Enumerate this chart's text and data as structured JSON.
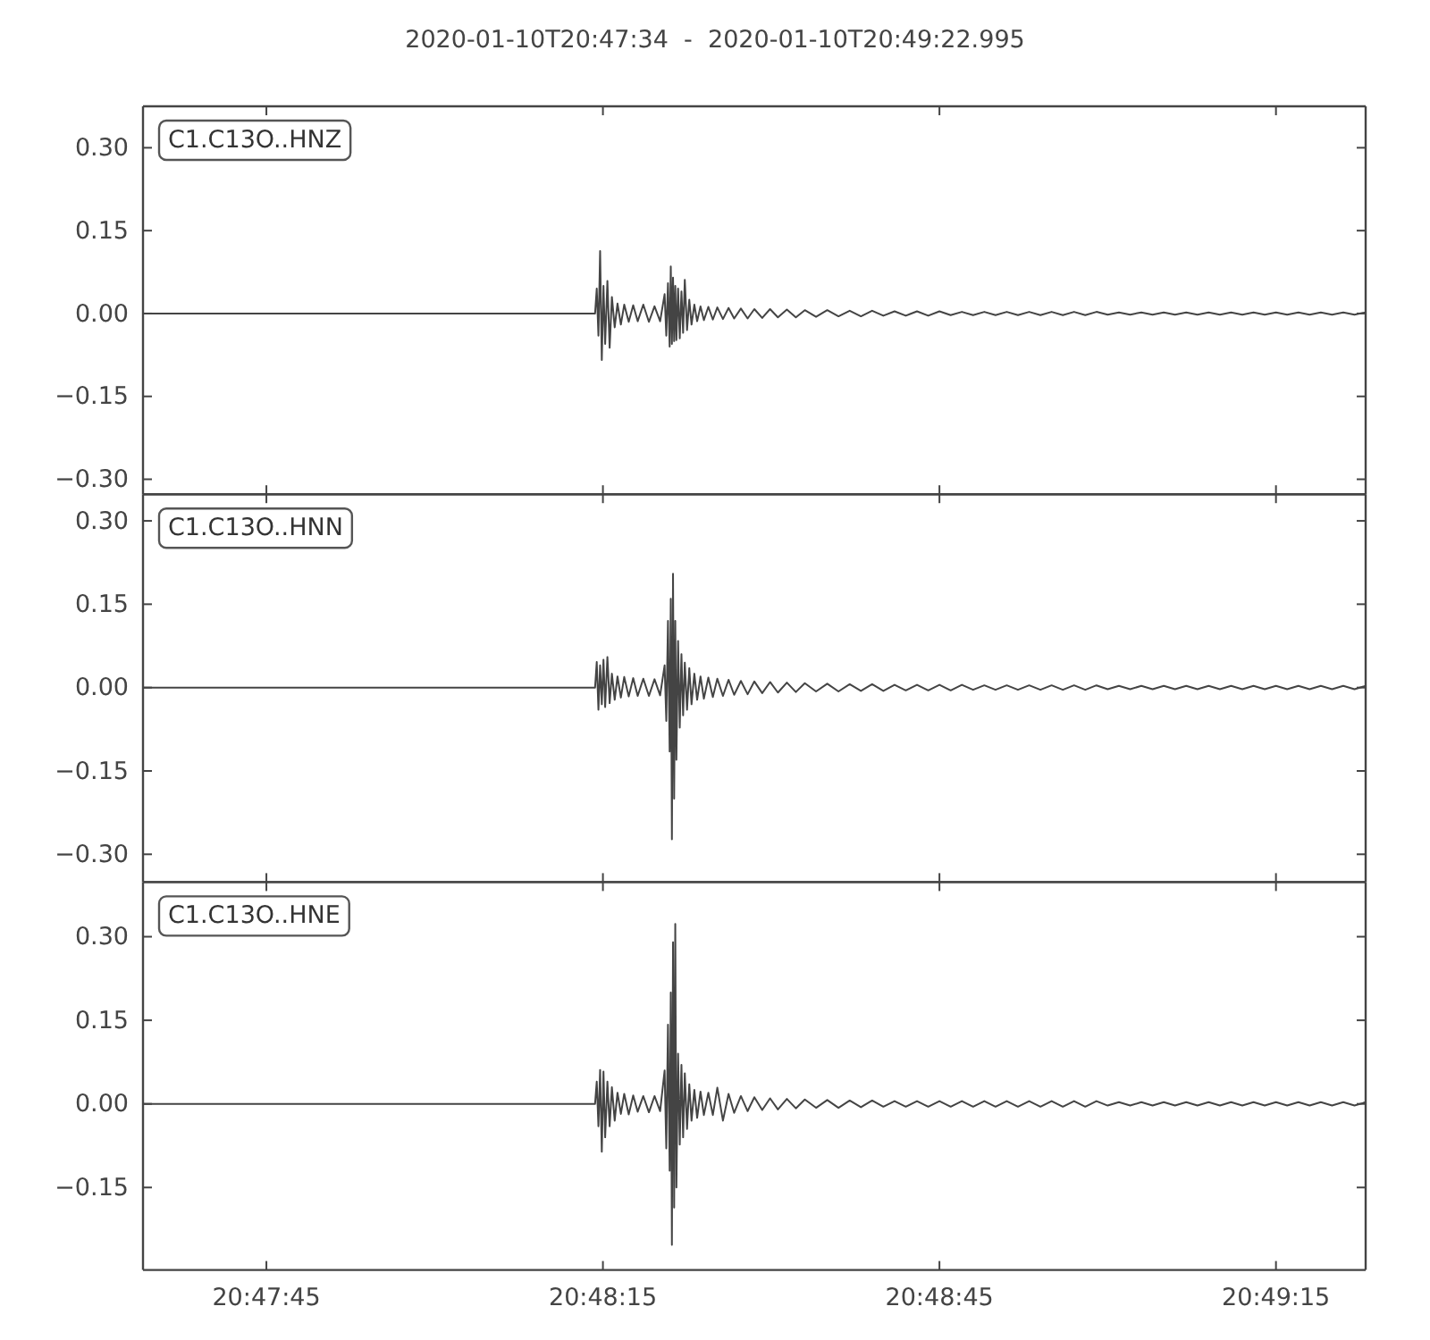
{
  "chart_data": [
    {
      "type": "line",
      "title": "2020-01-10T20:47:34  -  2020-01-10T20:49:22.995",
      "color": "#444444",
      "tick_labels": "y",
      "xlim": [
        "2020-01-10T20:47:34",
        "2020-01-10T20:49:22.995"
      ],
      "xticks": [
        {
          "value": "2020-01-10T20:47:45",
          "label": null
        },
        {
          "value": "2020-01-10T20:48:15",
          "label": null
        },
        {
          "value": "2020-01-10T20:48:45",
          "label": null
        },
        {
          "value": "2020-01-10T20:49:15",
          "label": null
        }
      ],
      "ylim": [
        -0.327,
        0.375
      ],
      "yticks": [
        {
          "value": -0.3,
          "label": "−0.30"
        },
        {
          "value": -0.15,
          "label": "−0.15"
        },
        {
          "value": 0,
          "label": "0.00"
        },
        {
          "value": 0.15,
          "label": "0.15"
        },
        {
          "value": 0.3,
          "label": "0.30"
        }
      ],
      "annotations": [
        "C1.C13O..HNZ"
      ],
      "x": [
        "2020-01-10T20:47:34",
        "2020-01-10T20:48:14.300",
        "2020-01-10T20:48:14.450",
        "2020-01-10T20:48:14.600",
        "2020-01-10T20:48:14.750",
        "2020-01-10T20:48:14.900",
        "2020-01-10T20:48:15.050",
        "2020-01-10T20:48:15.200",
        "2020-01-10T20:48:15.400",
        "2020-01-10T20:48:15.600",
        "2020-01-10T20:48:15.800",
        "2020-01-10T20:48:16.050",
        "2020-01-10T20:48:16.300",
        "2020-01-10T20:48:16.600",
        "2020-01-10T20:48:16.900",
        "2020-01-10T20:48:17.300",
        "2020-01-10T20:48:17.700",
        "2020-01-10T20:48:18.100",
        "2020-01-10T20:48:18.600",
        "2020-01-10T20:48:19.100",
        "2020-01-10T20:48:19.600",
        "2020-01-10T20:48:20.100",
        "2020-01-10T20:48:20.500",
        "2020-01-10T20:48:20.650",
        "2020-01-10T20:48:20.800",
        "2020-01-10T20:48:20.950",
        "2020-01-10T20:48:21.050",
        "2020-01-10T20:48:21.150",
        "2020-01-10T20:48:21.250",
        "2020-01-10T20:48:21.350",
        "2020-01-10T20:48:21.450",
        "2020-01-10T20:48:21.550",
        "2020-01-10T20:48:21.700",
        "2020-01-10T20:48:21.850",
        "2020-01-10T20:48:22",
        "2020-01-10T20:48:22.150",
        "2020-01-10T20:48:22.300",
        "2020-01-10T20:48:22.500",
        "2020-01-10T20:48:22.700",
        "2020-01-10T20:48:22.900",
        "2020-01-10T20:48:23.150",
        "2020-01-10T20:48:23.400",
        "2020-01-10T20:48:23.700",
        "2020-01-10T20:48:24",
        "2020-01-10T20:48:24.400",
        "2020-01-10T20:48:24.800",
        "2020-01-10T20:48:25.200",
        "2020-01-10T20:48:25.700",
        "2020-01-10T20:48:26.200",
        "2020-01-10T20:48:26.700",
        "2020-01-10T20:48:27.300",
        "2020-01-10T20:48:27.900",
        "2020-01-10T20:48:28.500",
        "2020-01-10T20:48:29.200",
        "2020-01-10T20:48:29.900",
        "2020-01-10T20:48:30.600",
        "2020-01-10T20:48:31.400",
        "2020-01-10T20:48:32.200",
        "2020-01-10T20:48:33",
        "2020-01-10T20:48:34",
        "2020-01-10T20:48:35",
        "2020-01-10T20:48:36",
        "2020-01-10T20:48:37",
        "2020-01-10T20:48:38",
        "2020-01-10T20:48:39",
        "2020-01-10T20:48:40",
        "2020-01-10T20:48:41",
        "2020-01-10T20:48:42",
        "2020-01-10T20:48:43",
        "2020-01-10T20:48:44",
        "2020-01-10T20:48:45",
        "2020-01-10T20:48:46",
        "2020-01-10T20:48:47",
        "2020-01-10T20:48:48",
        "2020-01-10T20:48:49",
        "2020-01-10T20:48:50",
        "2020-01-10T20:48:51",
        "2020-01-10T20:48:52",
        "2020-01-10T20:48:53",
        "2020-01-10T20:48:54",
        "2020-01-10T20:48:55",
        "2020-01-10T20:48:56",
        "2020-01-10T20:48:57",
        "2020-01-10T20:48:58",
        "2020-01-10T20:48:59",
        "2020-01-10T20:49:00",
        "2020-01-10T20:49:01",
        "2020-01-10T20:49:02",
        "2020-01-10T20:49:03",
        "2020-01-10T20:49:04",
        "2020-01-10T20:49:05",
        "2020-01-10T20:49:06",
        "2020-01-10T20:49:07",
        "2020-01-10T20:49:08",
        "2020-01-10T20:49:09",
        "2020-01-10T20:49:10",
        "2020-01-10T20:49:11",
        "2020-01-10T20:49:12",
        "2020-01-10T20:49:13",
        "2020-01-10T20:49:14",
        "2020-01-10T20:49:15",
        "2020-01-10T20:49:16",
        "2020-01-10T20:49:17",
        "2020-01-10T20:49:18",
        "2020-01-10T20:49:19",
        "2020-01-10T20:49:20",
        "2020-01-10T20:49:21",
        "2020-01-10T20:49:22",
        "2020-01-10T20:49:22.995"
      ],
      "values": [
        0,
        0,
        0.045,
        -0.04,
        0.113,
        -0.084,
        0.05,
        -0.055,
        0.059,
        -0.062,
        0.03,
        -0.025,
        0.018,
        -0.02,
        0.016,
        -0.015,
        0.015,
        -0.014,
        0.016,
        -0.015,
        0.013,
        -0.014,
        0.035,
        -0.04,
        0.055,
        -0.06,
        0.085,
        -0.055,
        0.065,
        -0.05,
        0.05,
        -0.048,
        0.045,
        -0.045,
        0.04,
        -0.035,
        0.061,
        -0.03,
        0.025,
        -0.02,
        0.016,
        -0.014,
        0.013,
        -0.012,
        0.012,
        -0.011,
        0.011,
        -0.01,
        0.01,
        -0.009,
        0.009,
        -0.009,
        0.008,
        -0.008,
        0.008,
        -0.007,
        0.007,
        -0.007,
        0.006,
        -0.006,
        0.006,
        -0.005,
        0.005,
        -0.005,
        0.005,
        -0.004,
        0.004,
        -0.004,
        0.004,
        -0.004,
        0.004,
        -0.003,
        0.003,
        -0.003,
        0.003,
        -0.003,
        0.003,
        -0.003,
        0.003,
        -0.003,
        0.003,
        -0.003,
        0.003,
        -0.003,
        0.003,
        -0.002,
        0.002,
        -0.002,
        0.002,
        -0.002,
        0.002,
        -0.002,
        0.002,
        -0.002,
        0.002,
        -0.002,
        0.002,
        -0.002,
        0.002,
        -0.002,
        0.002,
        -0.002,
        0.002,
        -0.002,
        0.002,
        -0.002,
        0.002,
        -0.002,
        0.002
      ]
    },
    {
      "type": "line",
      "color": "#444444",
      "tick_labels": "y",
      "xlim": [
        "2020-01-10T20:47:34",
        "2020-01-10T20:49:22.995"
      ],
      "xticks": [
        {
          "value": "2020-01-10T20:47:45",
          "label": null
        },
        {
          "value": "2020-01-10T20:48:15",
          "label": null
        },
        {
          "value": "2020-01-10T20:48:45",
          "label": null
        },
        {
          "value": "2020-01-10T20:49:15",
          "label": null
        }
      ],
      "ylim": [
        -0.35,
        0.348
      ],
      "yticks": [
        {
          "value": -0.3,
          "label": "−0.30"
        },
        {
          "value": -0.15,
          "label": "−0.15"
        },
        {
          "value": 0,
          "label": "0.00"
        },
        {
          "value": 0.15,
          "label": "0.15"
        },
        {
          "value": 0.3,
          "label": "0.30"
        }
      ],
      "annotations": [
        "C1.C13O..HNN"
      ],
      "x": [
        "2020-01-10T20:47:34",
        "2020-01-10T20:48:14.300",
        "2020-01-10T20:48:14.450",
        "2020-01-10T20:48:14.600",
        "2020-01-10T20:48:14.750",
        "2020-01-10T20:48:14.900",
        "2020-01-10T20:48:15.050",
        "2020-01-10T20:48:15.200",
        "2020-01-10T20:48:15.400",
        "2020-01-10T20:48:15.600",
        "2020-01-10T20:48:15.800",
        "2020-01-10T20:48:16.050",
        "2020-01-10T20:48:16.300",
        "2020-01-10T20:48:16.600",
        "2020-01-10T20:48:16.900",
        "2020-01-10T20:48:17.300",
        "2020-01-10T20:48:17.700",
        "2020-01-10T20:48:18.100",
        "2020-01-10T20:48:18.600",
        "2020-01-10T20:48:19.100",
        "2020-01-10T20:48:19.600",
        "2020-01-10T20:48:20.100",
        "2020-01-10T20:48:20.500",
        "2020-01-10T20:48:20.650",
        "2020-01-10T20:48:20.800",
        "2020-01-10T20:48:20.950",
        "2020-01-10T20:48:21.050",
        "2020-01-10T20:48:21.150",
        "2020-01-10T20:48:21.250",
        "2020-01-10T20:48:21.350",
        "2020-01-10T20:48:21.450",
        "2020-01-10T20:48:21.550",
        "2020-01-10T20:48:21.700",
        "2020-01-10T20:48:21.850",
        "2020-01-10T20:48:22",
        "2020-01-10T20:48:22.150",
        "2020-01-10T20:48:22.300",
        "2020-01-10T20:48:22.500",
        "2020-01-10T20:48:22.700",
        "2020-01-10T20:48:22.900",
        "2020-01-10T20:48:23.150",
        "2020-01-10T20:48:23.400",
        "2020-01-10T20:48:23.700",
        "2020-01-10T20:48:24",
        "2020-01-10T20:48:24.400",
        "2020-01-10T20:48:24.800",
        "2020-01-10T20:48:25.200",
        "2020-01-10T20:48:25.700",
        "2020-01-10T20:48:26.200",
        "2020-01-10T20:48:26.700",
        "2020-01-10T20:48:27.300",
        "2020-01-10T20:48:27.900",
        "2020-01-10T20:48:28.500",
        "2020-01-10T20:48:29.200",
        "2020-01-10T20:48:29.900",
        "2020-01-10T20:48:30.600",
        "2020-01-10T20:48:31.400",
        "2020-01-10T20:48:32.200",
        "2020-01-10T20:48:33",
        "2020-01-10T20:48:34",
        "2020-01-10T20:48:35",
        "2020-01-10T20:48:36",
        "2020-01-10T20:48:37",
        "2020-01-10T20:48:38",
        "2020-01-10T20:48:39",
        "2020-01-10T20:48:40",
        "2020-01-10T20:48:41",
        "2020-01-10T20:48:42",
        "2020-01-10T20:48:43",
        "2020-01-10T20:48:44",
        "2020-01-10T20:48:45",
        "2020-01-10T20:48:46",
        "2020-01-10T20:48:47",
        "2020-01-10T20:48:48",
        "2020-01-10T20:48:49",
        "2020-01-10T20:48:50",
        "2020-01-10T20:48:51",
        "2020-01-10T20:48:52",
        "2020-01-10T20:48:53",
        "2020-01-10T20:48:54",
        "2020-01-10T20:48:55",
        "2020-01-10T20:48:56",
        "2020-01-10T20:48:57",
        "2020-01-10T20:48:58",
        "2020-01-10T20:48:59",
        "2020-01-10T20:49:00",
        "2020-01-10T20:49:01",
        "2020-01-10T20:49:02",
        "2020-01-10T20:49:03",
        "2020-01-10T20:49:04",
        "2020-01-10T20:49:05",
        "2020-01-10T20:49:06",
        "2020-01-10T20:49:07",
        "2020-01-10T20:49:08",
        "2020-01-10T20:49:09",
        "2020-01-10T20:49:10",
        "2020-01-10T20:49:11",
        "2020-01-10T20:49:12",
        "2020-01-10T20:49:13",
        "2020-01-10T20:49:14",
        "2020-01-10T20:49:15",
        "2020-01-10T20:49:16",
        "2020-01-10T20:49:17",
        "2020-01-10T20:49:18",
        "2020-01-10T20:49:19",
        "2020-01-10T20:49:20",
        "2020-01-10T20:49:21",
        "2020-01-10T20:49:22",
        "2020-01-10T20:49:22.995"
      ],
      "values": [
        0,
        0,
        0.046,
        -0.04,
        0.04,
        -0.03,
        0.05,
        -0.035,
        0.055,
        -0.028,
        0.025,
        -0.022,
        0.02,
        -0.018,
        0.019,
        -0.016,
        0.017,
        -0.015,
        0.016,
        -0.015,
        0.015,
        -0.014,
        0.04,
        -0.06,
        0.12,
        -0.115,
        0.16,
        -0.273,
        0.205,
        -0.2,
        0.12,
        -0.13,
        0.084,
        -0.072,
        0.06,
        -0.05,
        0.045,
        -0.04,
        0.035,
        -0.03,
        0.025,
        -0.022,
        0.02,
        -0.02,
        0.018,
        -0.017,
        0.016,
        -0.015,
        0.014,
        -0.013,
        0.012,
        -0.012,
        0.011,
        -0.01,
        0.01,
        -0.009,
        0.009,
        -0.008,
        0.008,
        -0.007,
        0.007,
        -0.007,
        0.006,
        -0.006,
        0.006,
        -0.006,
        0.005,
        -0.005,
        0.005,
        -0.005,
        0.005,
        -0.005,
        0.005,
        -0.004,
        0.004,
        -0.004,
        0.004,
        -0.004,
        0.004,
        -0.004,
        0.004,
        -0.004,
        0.004,
        -0.004,
        0.004,
        -0.003,
        0.003,
        -0.003,
        0.003,
        -0.003,
        0.003,
        -0.003,
        0.003,
        -0.003,
        0.003,
        -0.003,
        0.003,
        -0.003,
        0.003,
        -0.003,
        0.003,
        -0.003,
        0.003,
        -0.003,
        0.003,
        -0.003,
        0.003,
        -0.003,
        0.003
      ]
    },
    {
      "type": "line",
      "color": "#444444",
      "xlim": [
        "2020-01-10T20:47:34",
        "2020-01-10T20:49:22.995"
      ],
      "xticks": [
        {
          "value": "2020-01-10T20:47:45",
          "label": "20:47:45"
        },
        {
          "value": "2020-01-10T20:48:15",
          "label": "20:48:15"
        },
        {
          "value": "2020-01-10T20:48:45",
          "label": "20:48:45"
        },
        {
          "value": "2020-01-10T20:49:15",
          "label": "20:49:15"
        }
      ],
      "ylim": [
        -0.298,
        0.398
      ],
      "yticks": [
        {
          "value": -0.15,
          "label": "−0.15"
        },
        {
          "value": 0,
          "label": "0.00"
        },
        {
          "value": 0.15,
          "label": "0.15"
        },
        {
          "value": 0.3,
          "label": "0.30"
        }
      ],
      "annotations": [
        "C1.C13O..HNE"
      ],
      "x": [
        "2020-01-10T20:47:34",
        "2020-01-10T20:48:14.300",
        "2020-01-10T20:48:14.450",
        "2020-01-10T20:48:14.600",
        "2020-01-10T20:48:14.750",
        "2020-01-10T20:48:14.900",
        "2020-01-10T20:48:15.050",
        "2020-01-10T20:48:15.200",
        "2020-01-10T20:48:15.400",
        "2020-01-10T20:48:15.600",
        "2020-01-10T20:48:15.800",
        "2020-01-10T20:48:16.050",
        "2020-01-10T20:48:16.300",
        "2020-01-10T20:48:16.600",
        "2020-01-10T20:48:16.900",
        "2020-01-10T20:48:17.300",
        "2020-01-10T20:48:17.700",
        "2020-01-10T20:48:18.100",
        "2020-01-10T20:48:18.600",
        "2020-01-10T20:48:19.100",
        "2020-01-10T20:48:19.600",
        "2020-01-10T20:48:20.100",
        "2020-01-10T20:48:20.500",
        "2020-01-10T20:48:20.650",
        "2020-01-10T20:48:20.800",
        "2020-01-10T20:48:20.950",
        "2020-01-10T20:48:21.050",
        "2020-01-10T20:48:21.150",
        "2020-01-10T20:48:21.250",
        "2020-01-10T20:48:21.350",
        "2020-01-10T20:48:21.450",
        "2020-01-10T20:48:21.550",
        "2020-01-10T20:48:21.700",
        "2020-01-10T20:48:21.850",
        "2020-01-10T20:48:22",
        "2020-01-10T20:48:22.150",
        "2020-01-10T20:48:22.300",
        "2020-01-10T20:48:22.500",
        "2020-01-10T20:48:22.700",
        "2020-01-10T20:48:22.900",
        "2020-01-10T20:48:23.150",
        "2020-01-10T20:48:23.400",
        "2020-01-10T20:48:23.700",
        "2020-01-10T20:48:24",
        "2020-01-10T20:48:24.400",
        "2020-01-10T20:48:24.800",
        "2020-01-10T20:48:25.200",
        "2020-01-10T20:48:25.700",
        "2020-01-10T20:48:26.200",
        "2020-01-10T20:48:26.700",
        "2020-01-10T20:48:27.300",
        "2020-01-10T20:48:27.900",
        "2020-01-10T20:48:28.500",
        "2020-01-10T20:48:29.200",
        "2020-01-10T20:48:29.900",
        "2020-01-10T20:48:30.600",
        "2020-01-10T20:48:31.400",
        "2020-01-10T20:48:32.200",
        "2020-01-10T20:48:33",
        "2020-01-10T20:48:34",
        "2020-01-10T20:48:35",
        "2020-01-10T20:48:36",
        "2020-01-10T20:48:37",
        "2020-01-10T20:48:38",
        "2020-01-10T20:48:39",
        "2020-01-10T20:48:40",
        "2020-01-10T20:48:41",
        "2020-01-10T20:48:42",
        "2020-01-10T20:48:43",
        "2020-01-10T20:48:44",
        "2020-01-10T20:48:45",
        "2020-01-10T20:48:46",
        "2020-01-10T20:48:47",
        "2020-01-10T20:48:48",
        "2020-01-10T20:48:49",
        "2020-01-10T20:48:50",
        "2020-01-10T20:48:51",
        "2020-01-10T20:48:52",
        "2020-01-10T20:48:53",
        "2020-01-10T20:48:54",
        "2020-01-10T20:48:55",
        "2020-01-10T20:48:56",
        "2020-01-10T20:48:57",
        "2020-01-10T20:48:58",
        "2020-01-10T20:48:59",
        "2020-01-10T20:49:00",
        "2020-01-10T20:49:01",
        "2020-01-10T20:49:02",
        "2020-01-10T20:49:03",
        "2020-01-10T20:49:04",
        "2020-01-10T20:49:05",
        "2020-01-10T20:49:06",
        "2020-01-10T20:49:07",
        "2020-01-10T20:49:08",
        "2020-01-10T20:49:09",
        "2020-01-10T20:49:10",
        "2020-01-10T20:49:11",
        "2020-01-10T20:49:12",
        "2020-01-10T20:49:13",
        "2020-01-10T20:49:14",
        "2020-01-10T20:49:15",
        "2020-01-10T20:49:16",
        "2020-01-10T20:49:17",
        "2020-01-10T20:49:18",
        "2020-01-10T20:49:19",
        "2020-01-10T20:49:20",
        "2020-01-10T20:49:21",
        "2020-01-10T20:49:22",
        "2020-01-10T20:49:22.995"
      ],
      "values": [
        0,
        0,
        0.04,
        -0.04,
        0.061,
        -0.086,
        0.058,
        -0.06,
        0.04,
        -0.04,
        0.03,
        -0.03,
        0.02,
        -0.018,
        0.018,
        -0.019,
        0.015,
        -0.014,
        0.014,
        -0.015,
        0.014,
        -0.013,
        0.06,
        -0.08,
        0.142,
        -0.12,
        0.2,
        -0.253,
        0.29,
        -0.186,
        0.323,
        -0.15,
        0.09,
        -0.073,
        0.07,
        -0.06,
        0.055,
        -0.045,
        0.035,
        -0.03,
        0.025,
        -0.025,
        0.022,
        -0.02,
        0.02,
        -0.02,
        0.029,
        -0.03,
        0.018,
        -0.016,
        0.014,
        -0.013,
        0.012,
        -0.011,
        0.01,
        -0.01,
        0.009,
        -0.008,
        0.008,
        -0.007,
        0.007,
        -0.007,
        0.006,
        -0.006,
        0.006,
        -0.005,
        0.005,
        -0.005,
        0.005,
        -0.005,
        0.005,
        -0.005,
        0.005,
        -0.005,
        0.005,
        -0.005,
        0.005,
        -0.005,
        0.005,
        -0.005,
        0.005,
        -0.005,
        0.005,
        -0.005,
        0.005,
        -0.003,
        0.003,
        -0.003,
        0.003,
        -0.003,
        0.003,
        -0.003,
        0.003,
        -0.003,
        0.003,
        -0.003,
        0.003,
        -0.003,
        0.003,
        -0.003,
        0.003,
        -0.003,
        0.003,
        -0.003,
        0.003,
        -0.003,
        0.003,
        -0.003,
        0.003
      ]
    }
  ]
}
